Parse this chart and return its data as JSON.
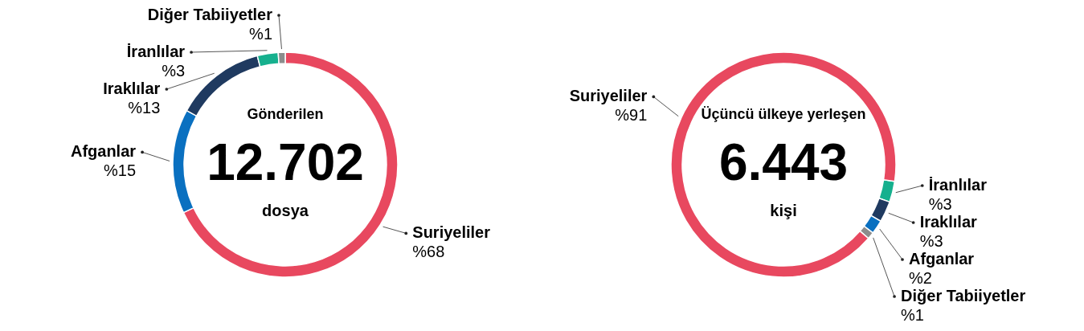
{
  "chart_data": [
    {
      "type": "donut",
      "categories": [
        "Suriyeliler",
        "Afganlar",
        "Iraklılar",
        "İranlılar",
        "Diğer Tabiiyetler"
      ],
      "values": [
        68,
        15,
        13,
        3,
        1
      ],
      "colors": [
        "#e8485f",
        "#0a70c0",
        "#1f3a60",
        "#16b08e",
        "#8c8c8c"
      ],
      "value_labels": [
        "%68",
        "%15",
        "%13",
        "%3",
        "%1"
      ],
      "annotations": [
        "Gönderilen",
        "12.702",
        "dosya"
      ],
      "legend": false
    },
    {
      "type": "donut",
      "categories": [
        "İranlılar",
        "Iraklılar",
        "Afganlar",
        "Diğer Tabiiyetler",
        "Suriyeliler"
      ],
      "values": [
        3,
        3,
        2,
        1,
        91
      ],
      "colors": [
        "#16b08e",
        "#1f3a60",
        "#0a70c0",
        "#8c8c8c",
        "#e8485f"
      ],
      "value_labels": [
        "%3",
        "%3",
        "%2",
        "%1",
        "%91"
      ],
      "annotations": [
        "Üçüncü ülkeye yerleşen",
        "6.443",
        "kişi"
      ],
      "legend": false
    }
  ]
}
